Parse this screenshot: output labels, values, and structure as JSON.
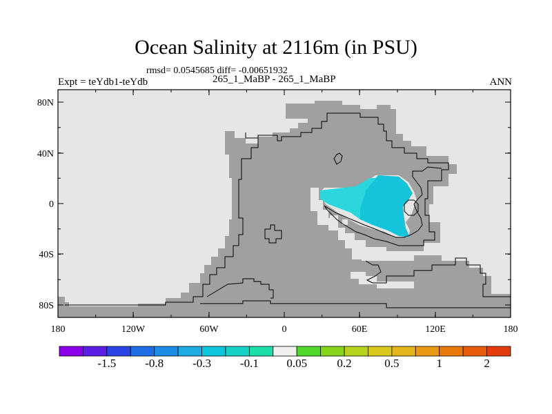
{
  "title": "Ocean Salinity at 2116m (in PSU)",
  "stats_line": "rmsd= 0.0545685 diff= -0.00651932",
  "experiment": "Expt = teYdb1-teYdb",
  "period": "265_1_MaBP - 265_1_MaBP",
  "season": "ANN",
  "map": {
    "lat_ticks": [
      "80N",
      "40N",
      "0",
      "40S",
      "80S"
    ],
    "lon_ticks": [
      "180",
      "120W",
      "60W",
      "0",
      "60E",
      "120E",
      "180"
    ],
    "colors": {
      "ocean": "#e6e6e6",
      "land": "#a0a0a0",
      "anomaly_dark": "#15c4d8",
      "anomaly_light": "#2bd6dc"
    }
  },
  "colorbar": {
    "labels": [
      "-1.5",
      "-0.8",
      "-0.3",
      "-0.1",
      "0.05",
      "0.2",
      "0.5",
      "1",
      "2"
    ],
    "colors": [
      "#8a00e8",
      "#5a1ee6",
      "#2a44e6",
      "#1e6ee6",
      "#1d8ce6",
      "#1cabe2",
      "#0cc7dc",
      "#12d3c6",
      "#1bdeab",
      "#f0f0f0",
      "#50d82a",
      "#86d41a",
      "#b7d21a",
      "#d8c91a",
      "#e3b51a",
      "#e89a14",
      "#e87a0c",
      "#e65c0c",
      "#e43c0c"
    ]
  }
}
